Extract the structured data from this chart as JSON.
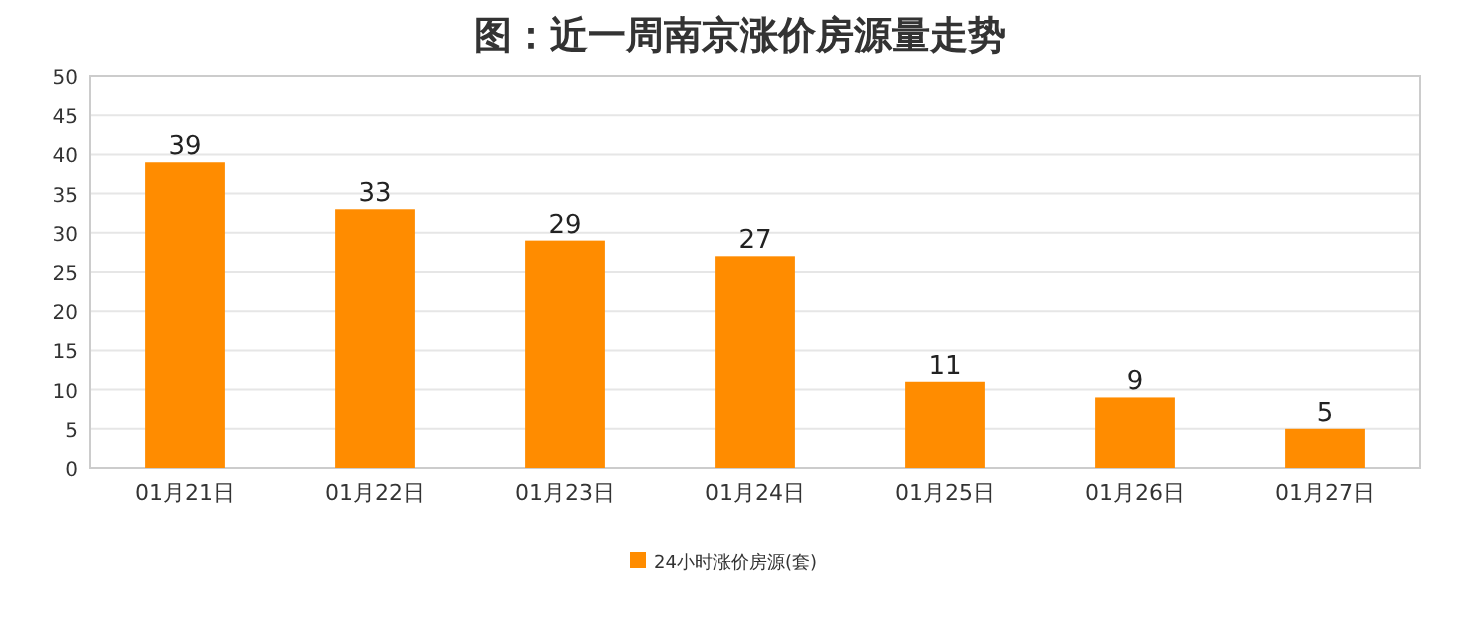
{
  "chart_data": {
    "type": "bar",
    "title": "图：近一周南京涨价房源量走势",
    "categories": [
      "01月21日",
      "01月22日",
      "01月23日",
      "01月24日",
      "01月25日",
      "01月26日",
      "01月27日"
    ],
    "series": [
      {
        "name": "24小时涨价房源(套)",
        "color": "#ff8c00",
        "values": [
          39,
          33,
          29,
          27,
          11,
          9,
          5
        ]
      }
    ],
    "ylim": [
      0,
      50
    ],
    "yticks": [
      0,
      5,
      10,
      15,
      20,
      25,
      30,
      35,
      40,
      45,
      50
    ],
    "grid": "y",
    "legend": "bottom",
    "data_labels": true
  }
}
